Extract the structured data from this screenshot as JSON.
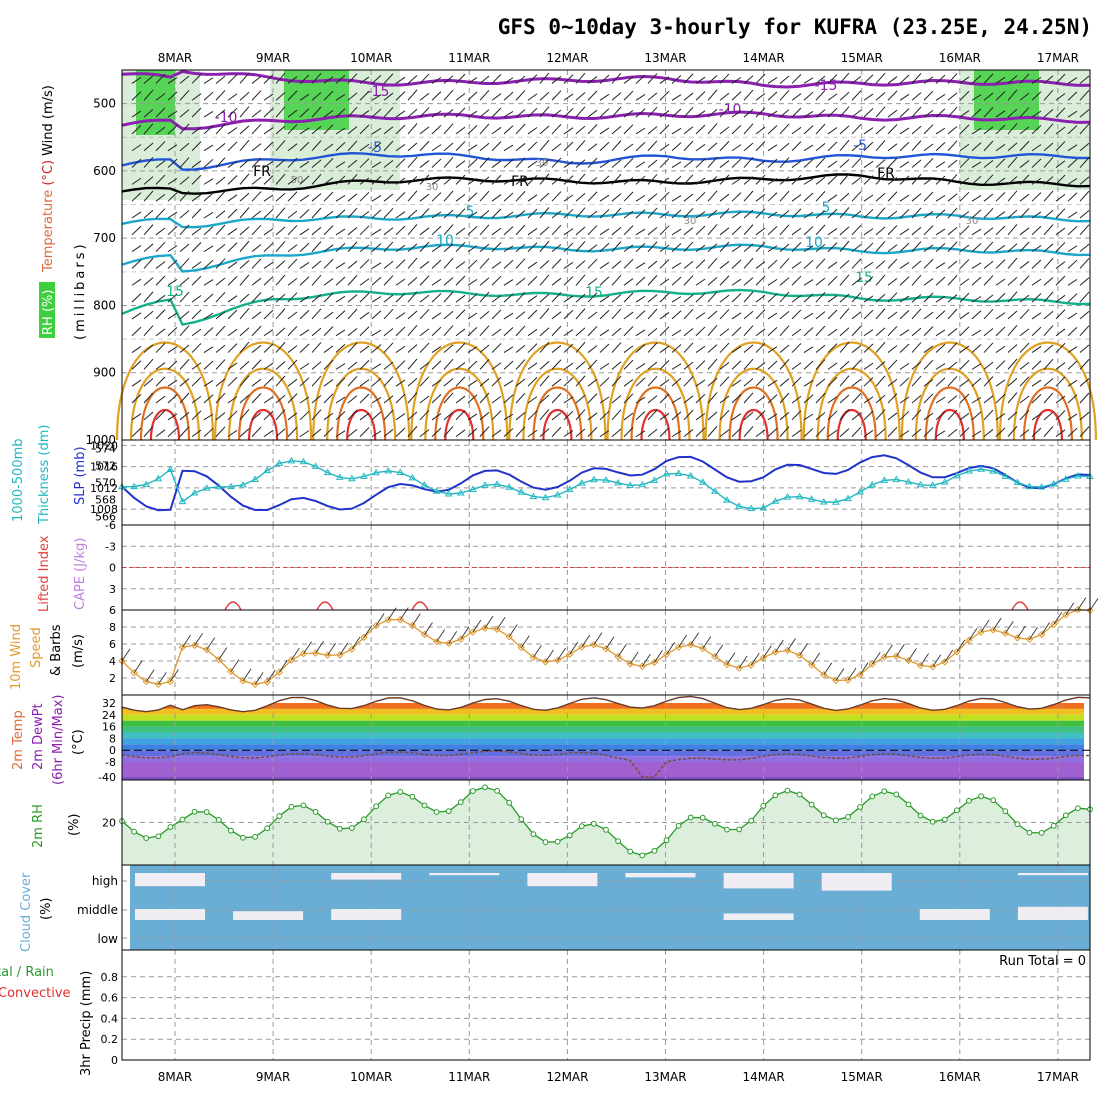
{
  "title": "GFS 0~10day 3-hourly for KUFRA (23.25E, 24.25N)",
  "dates": [
    "8MAR",
    "9MAR",
    "10MAR",
    "11MAR",
    "12MAR",
    "13MAR",
    "14MAR",
    "15MAR",
    "16MAR",
    "17MAR"
  ],
  "colors": {
    "rh_green": "#3ecf3e",
    "temp_purple": "#8a1fb0",
    "temp_blue": "#2255d6",
    "temp_cyan": "#1aa7c9",
    "temp_teal": "#14b08a",
    "temp_orange": "#e0a020",
    "temp_red": "#e03030",
    "slp": "#2233cc",
    "thickness": "#22b8c0",
    "lifted": "#e04040",
    "cape": "#c080e0",
    "wind": "#e09a30",
    "rh2m": "#2a9a2a",
    "cloud": "#6aaed6",
    "precip_total": "#2a9a2a",
    "precip_conv": "#e03030"
  },
  "panels": {
    "upper": {
      "ylabel_rh": "RH (%)",
      "ylabel_temp": "Temperature",
      "ylabel_temp_unit": "(°C)",
      "ylabel_wind": "Wind (m/s)",
      "ylabel_mb": "(millibars)",
      "yticks": [
        "500",
        "600",
        "700",
        "800",
        "900",
        "1000"
      ],
      "contour_labels": [
        "-15",
        "-15",
        "-10",
        "-10",
        "-5",
        "-5",
        "FR",
        "FR",
        "FR",
        "5",
        "5",
        "10",
        "10",
        "15",
        "15",
        "15",
        "30",
        "30",
        "30",
        "30",
        "50"
      ]
    },
    "slp": {
      "ylabel_left": "1000-500mb",
      "ylabel_left2": "Thickness (dm)",
      "ylabel_right": "SLP (mb)",
      "yticks_left": [
        "574",
        "572",
        "570",
        "568",
        "566"
      ],
      "yticks_right": [
        "1020",
        "1016",
        "1012",
        "1008"
      ]
    },
    "li": {
      "ylabel1": "Lifted Index",
      "ylabel2": "CAPE (J/kg)",
      "yticks": [
        "-6",
        "-3",
        "0",
        "3",
        "6"
      ]
    },
    "wind": {
      "ylabel1": "10m Wind",
      "ylabel2": "Speed",
      "ylabel3": "& Barbs",
      "ylabel_unit": "(m/s)",
      "yticks": [
        "8",
        "6",
        "4",
        "2"
      ]
    },
    "temp": {
      "ylabel1": "2m Temp",
      "ylabel2": "2m DewPt",
      "ylabel3": "(6hr Min/Max)",
      "ylabel_unit": "(°C)",
      "yticks": [
        "32",
        "24",
        "16",
        "8",
        "0",
        "-8",
        "-40"
      ]
    },
    "rh": {
      "ylabel": "2m RH",
      "ylabel_unit": "(%)",
      "yticks": [
        "20"
      ]
    },
    "cloud": {
      "ylabel": "Cloud Cover",
      "ylabel_unit": "(%)",
      "yticks": [
        "high",
        "middle",
        "low"
      ]
    },
    "precip": {
      "ylabel1": "tal / Rain",
      "ylabel2": "Convective",
      "ylabel3": "3hr Precip (mm)",
      "yticks": [
        "0.8",
        "0.6",
        "0.4",
        "0.2",
        "0"
      ],
      "run_total": "Run Total = 0"
    }
  },
  "chart_data": [
    {
      "type": "line",
      "title": "GFS 0~10day 3-hourly for KUFRA (23.25E, 24.25N)",
      "panel": "Temperature (°C) / RH (%) / Wind (m/s) cross-section",
      "ylabel": "(millibars)",
      "ylim": [
        1000,
        450
      ],
      "x": [
        "8MAR",
        "9MAR",
        "10MAR",
        "11MAR",
        "12MAR",
        "13MAR",
        "14MAR",
        "15MAR",
        "16MAR",
        "17MAR"
      ],
      "series": [
        {
          "name": "-15",
          "values": [
            450,
            462,
            470,
            468,
            465,
            462,
            473,
            470,
            468,
            470
          ]
        },
        {
          "name": "-10",
          "values": [
            537,
            525,
            520,
            518,
            520,
            517,
            515,
            522,
            520,
            525
          ]
        },
        {
          "name": "-5",
          "values": [
            598,
            583,
            575,
            578,
            588,
            578,
            585,
            578,
            578,
            578
          ]
        },
        {
          "name": "FR",
          "values": [
            632,
            627,
            615,
            612,
            615,
            617,
            612,
            607,
            617,
            620
          ]
        },
        {
          "name": "5",
          "values": [
            683,
            672,
            670,
            668,
            665,
            665,
            663,
            668,
            667,
            672
          ]
        },
        {
          "name": "10",
          "values": [
            750,
            725,
            715,
            712,
            717,
            715,
            712,
            720,
            717,
            722
          ]
        },
        {
          "name": "15",
          "values": [
            830,
            790,
            780,
            782,
            785,
            780,
            780,
            790,
            790,
            795
          ]
        }
      ]
    },
    {
      "type": "line",
      "panel": "1000-500mb Thickness (dm) / SLP (mb)",
      "x": [
        "8MAR",
        "9MAR",
        "10MAR",
        "11MAR",
        "12MAR",
        "13MAR",
        "14MAR",
        "15MAR",
        "16MAR",
        "17MAR"
      ],
      "series": [
        {
          "name": "SLP (mb)",
          "axis": "right",
          "values": [
            1015,
            1008,
            1010,
            1014,
            1013,
            1017,
            1014,
            1017,
            1015,
            1013
          ]
        },
        {
          "name": "1000-500mb Thickness (dm)",
          "axis": "left",
          "values": [
            567,
            572,
            571,
            569,
            569,
            571,
            567,
            569,
            571,
            570
          ]
        }
      ],
      "ylim_left": [
        565,
        575
      ],
      "ylim_right": [
        1005,
        1021
      ]
    },
    {
      "type": "line",
      "panel": "Lifted Index / CAPE (J/kg)",
      "x": [
        "8MAR",
        "9MAR",
        "10MAR",
        "11MAR",
        "12MAR",
        "13MAR",
        "14MAR",
        "15MAR",
        "16MAR",
        "17MAR"
      ],
      "series": [
        {
          "name": "Lifted Index",
          "values": [
            6,
            6,
            6,
            6,
            6,
            6,
            6,
            6,
            6,
            6
          ]
        }
      ],
      "ylim": [
        6,
        -6
      ]
    },
    {
      "type": "line",
      "panel": "10m Wind Speed & Barbs (m/s)",
      "x": [
        "8MAR",
        "9MAR",
        "10MAR",
        "11MAR",
        "12MAR",
        "13MAR",
        "14MAR",
        "15MAR",
        "16MAR",
        "17MAR"
      ],
      "series": [
        {
          "name": "10m Wind Speed",
          "values": [
            5.3,
            1.8,
            7.8,
            7.2,
            4.6,
            4.7,
            4.4,
            2.5,
            5.4,
            8.8
          ]
        }
      ],
      "ylim": [
        0,
        10
      ]
    },
    {
      "type": "area",
      "panel": "2m Temp / 2m DewPt (6hr Min/Max) (°C)",
      "x": [
        "8MAR",
        "9MAR",
        "10MAR",
        "11MAR",
        "12MAR",
        "13MAR",
        "14MAR",
        "15MAR",
        "16MAR",
        "17MAR"
      ],
      "series": [
        {
          "name": "2m Temp",
          "values": [
            25,
            32,
            32,
            31,
            31,
            33,
            31,
            31,
            31,
            32
          ]
        },
        {
          "name": "2m DewPt",
          "values": [
            -3,
            -4,
            -3,
            -2,
            -2,
            -8,
            -4,
            -4,
            -4,
            -5
          ]
        }
      ]
    },
    {
      "type": "area",
      "panel": "2m RH (%)",
      "x": [
        "8MAR",
        "9MAR",
        "10MAR",
        "11MAR",
        "12MAR",
        "13MAR",
        "14MAR",
        "15MAR",
        "16MAR",
        "17MAR"
      ],
      "series": [
        {
          "name": "2m RH",
          "values": [
            18,
            20,
            25,
            34,
            13,
            11,
            28,
            28,
            27,
            20
          ]
        }
      ]
    },
    {
      "type": "area",
      "panel": "Cloud Cover (%)",
      "categories": [
        "high",
        "middle",
        "low"
      ],
      "x": [
        "8MAR",
        "9MAR",
        "10MAR",
        "11MAR",
        "12MAR",
        "13MAR",
        "14MAR",
        "15MAR",
        "16MAR",
        "17MAR"
      ],
      "series": [
        {
          "name": "high",
          "values": [
            60,
            0,
            30,
            10,
            60,
            20,
            70,
            80,
            0,
            10
          ]
        },
        {
          "name": "middle",
          "values": [
            50,
            40,
            50,
            0,
            0,
            0,
            30,
            0,
            50,
            60
          ]
        },
        {
          "name": "low",
          "values": [
            0,
            0,
            0,
            0,
            0,
            0,
            0,
            0,
            0,
            0
          ]
        }
      ]
    },
    {
      "type": "bar",
      "panel": "3hr Precip (mm)",
      "x": [
        "8MAR",
        "9MAR",
        "10MAR",
        "11MAR",
        "12MAR",
        "13MAR",
        "14MAR",
        "15MAR",
        "16MAR",
        "17MAR"
      ],
      "series": [
        {
          "name": "Total / Rain",
          "values": [
            0,
            0,
            0,
            0,
            0,
            0,
            0,
            0,
            0,
            0
          ]
        },
        {
          "name": "Convective",
          "values": [
            0,
            0,
            0,
            0,
            0,
            0,
            0,
            0,
            0,
            0
          ]
        }
      ],
      "ylim": [
        0,
        1
      ]
    }
  ]
}
